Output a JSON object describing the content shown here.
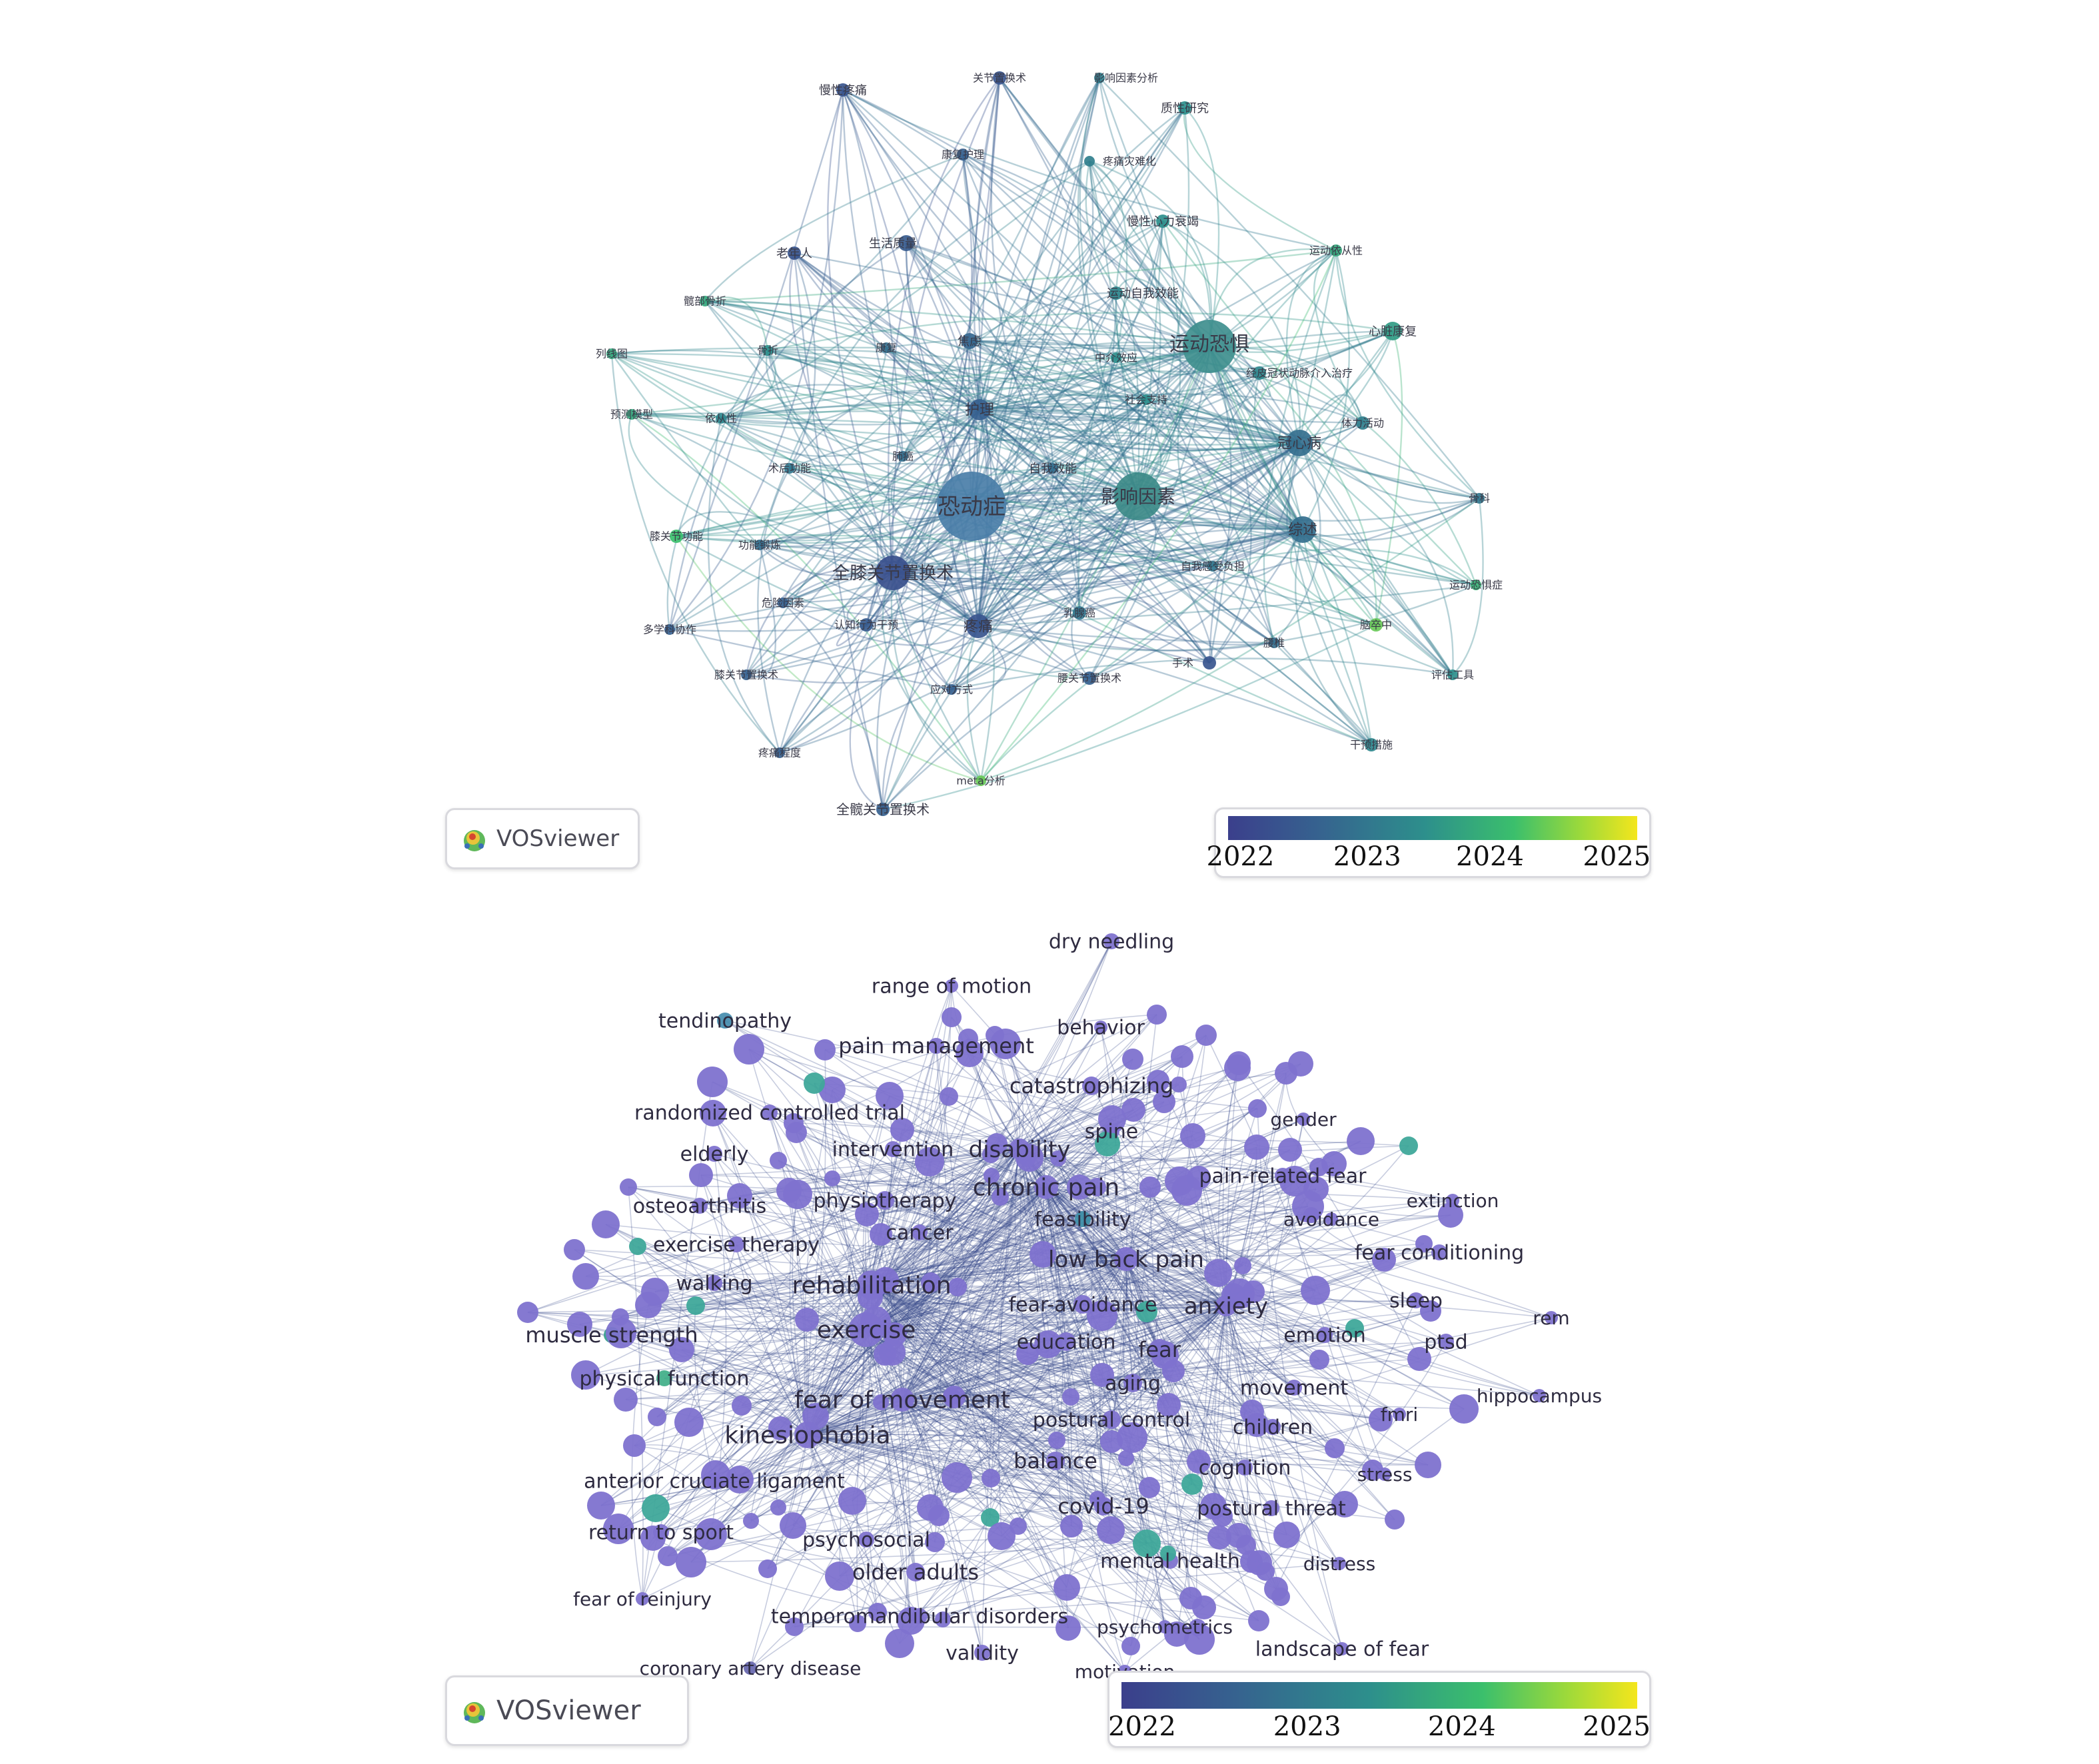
{
  "top_panel": {
    "logo_text": "VOSviewer",
    "legend_ticks": [
      "2022",
      "2023",
      "2024",
      "2025"
    ],
    "center_label": "恐动症",
    "labels": [
      "恐动症",
      "运动恐惧",
      "影响因素",
      "全膝关节置换术",
      "综述",
      "冠心病",
      "护理",
      "疼痛",
      "慢性疼痛",
      "关节置换术",
      "影响因素分析",
      "质性研究",
      "康复护理",
      "疼痛灾难化",
      "慢性心力衰竭",
      "运动依从性",
      "老年人",
      "生活质量",
      "运动自我效能",
      "心脏康复",
      "髋部骨折",
      "列线图",
      "骨折",
      "康复",
      "焦虑",
      "中介效应",
      "经皮冠状动脉介入治疗",
      "社会支持",
      "体力活动",
      "预测模型",
      "依从性",
      "术后功能",
      "肺癌",
      "自我效能",
      "膝关节功能",
      "功能锻炼",
      "自我感受负担",
      "运动恐惧症",
      "危险因素",
      "认知行为干预",
      "多学科协作",
      "乳腺癌",
      "脑卒中",
      "腰椎",
      "膝关节置换术",
      "腰关节置换术",
      "应对方式",
      "评估工具",
      "干预措施",
      "疼痛程度",
      "meta分析",
      "全髋关节置换术",
      "手术",
      "骨科"
    ]
  },
  "bottom_panel": {
    "logo_text": "VOSviewer",
    "legend_ticks": [
      "2022",
      "2023",
      "2024",
      "2025"
    ],
    "labels": [
      "dry needling",
      "range of motion",
      "tendinopathy",
      "behavior",
      "pain management",
      "catastrophizing",
      "randomized controlled trial",
      "gender",
      "spine",
      "elderly",
      "intervention",
      "disability",
      "pain-related fear",
      "chronic pain",
      "extinction",
      "osteoarthritis",
      "physiotherapy",
      "avoidance",
      "feasibility",
      "cancer",
      "exercise therapy",
      "fear conditioning",
      "low back pain",
      "walking",
      "rehabilitation",
      "sleep",
      "fear-avoidance",
      "anxiety",
      "rem",
      "muscle strength",
      "exercise",
      "emotion",
      "education",
      "ptsd",
      "fear",
      "physical function",
      "aging",
      "movement",
      "hippocampus",
      "fear of movement",
      "fmri",
      "postural control",
      "children",
      "kinesiophobia",
      "balance",
      "cognition",
      "stress",
      "anterior cruciate ligament",
      "covid-19",
      "postural threat",
      "return to sport",
      "psychosocial",
      "mental health",
      "distress",
      "older adults",
      "fear of reinjury",
      "temporomandibular disorders",
      "psychometrics",
      "landscape of fear",
      "validity",
      "coronary artery disease",
      "motivation"
    ]
  }
}
